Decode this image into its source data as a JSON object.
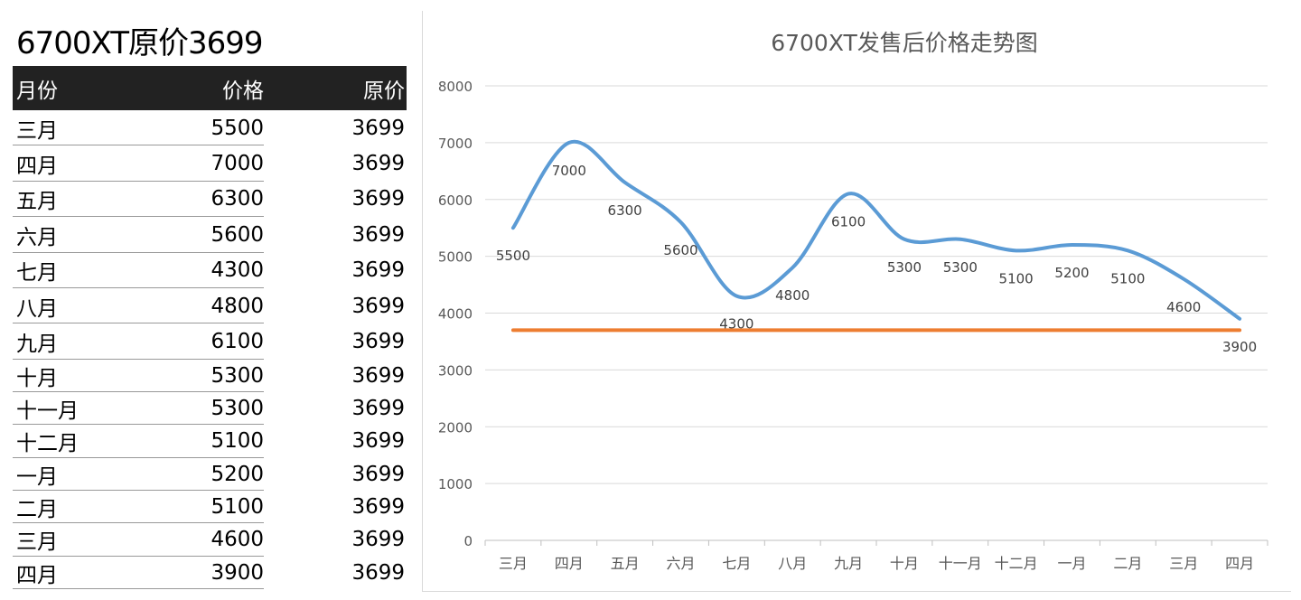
{
  "sheet_title": "6700XT原价3699",
  "table": {
    "headers": [
      "月份",
      "价格",
      "原价"
    ],
    "rows": [
      [
        "三月",
        "5500",
        "3699"
      ],
      [
        "四月",
        "7000",
        "3699"
      ],
      [
        "五月",
        "6300",
        "3699"
      ],
      [
        "六月",
        "5600",
        "3699"
      ],
      [
        "七月",
        "4300",
        "3699"
      ],
      [
        "八月",
        "4800",
        "3699"
      ],
      [
        "九月",
        "6100",
        "3699"
      ],
      [
        "十月",
        "5300",
        "3699"
      ],
      [
        "十一月",
        "5300",
        "3699"
      ],
      [
        "十二月",
        "5100",
        "3699"
      ],
      [
        "一月",
        "5200",
        "3699"
      ],
      [
        "二月",
        "5100",
        "3699"
      ],
      [
        "三月",
        "4600",
        "3699"
      ],
      [
        "四月",
        "3900",
        "3699"
      ]
    ]
  },
  "chart_data": {
    "type": "line",
    "title": "6700XT发售后价格走势图",
    "categories": [
      "三月",
      "四月",
      "五月",
      "六月",
      "七月",
      "八月",
      "九月",
      "十月",
      "十一月",
      "十二月",
      "一月",
      "二月",
      "三月",
      "四月"
    ],
    "series": [
      {
        "name": "价格",
        "color": "#5b9bd5",
        "smooth": true,
        "data_labels": true,
        "values": [
          5500,
          7000,
          6300,
          5600,
          4300,
          4800,
          6100,
          5300,
          5300,
          5100,
          5200,
          5100,
          4600,
          3900
        ]
      },
      {
        "name": "原价",
        "color": "#ed7d31",
        "smooth": true,
        "data_labels": false,
        "values": [
          3699,
          3699,
          3699,
          3699,
          3699,
          3699,
          3699,
          3699,
          3699,
          3699,
          3699,
          3699,
          3699,
          3699
        ]
      }
    ],
    "ylim": [
      0,
      8000
    ],
    "yticks": [
      0,
      1000,
      2000,
      3000,
      4000,
      5000,
      6000,
      7000,
      8000
    ],
    "grid": true,
    "legend": "none"
  }
}
